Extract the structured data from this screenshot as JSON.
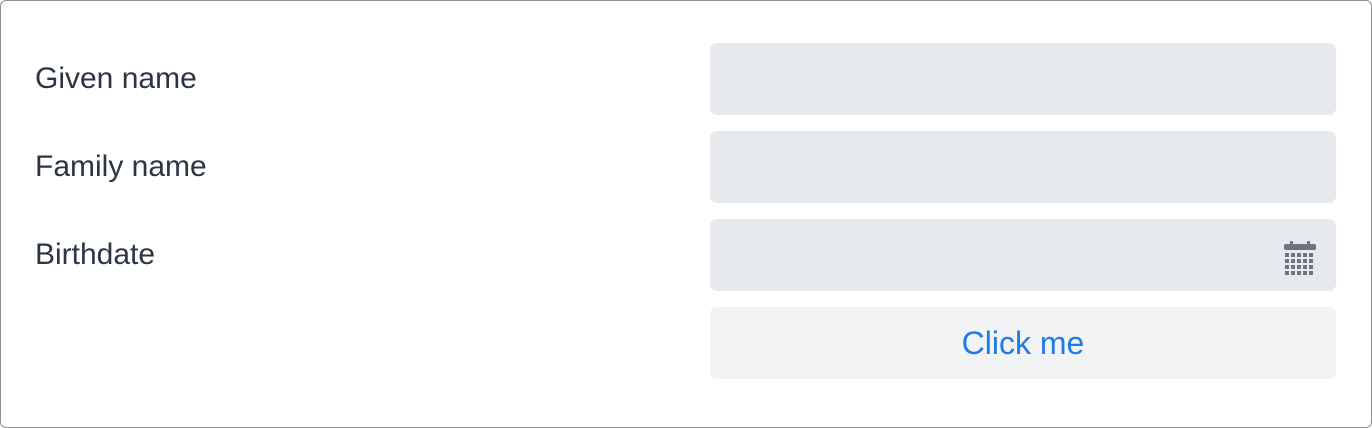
{
  "form": {
    "fields": [
      {
        "label": "Given name",
        "value": "",
        "placeholder": ""
      },
      {
        "label": "Family name",
        "value": "",
        "placeholder": ""
      },
      {
        "label": "Birthdate",
        "value": "",
        "placeholder": "",
        "icon": "calendar-icon"
      }
    ],
    "submit_label": "Click me"
  },
  "colors": {
    "field_bg": "#e6e9ed",
    "button_bg": "#f2f3f5",
    "button_text": "#1f7be8",
    "label_text": "#2b3544",
    "icon": "#6d7480"
  }
}
